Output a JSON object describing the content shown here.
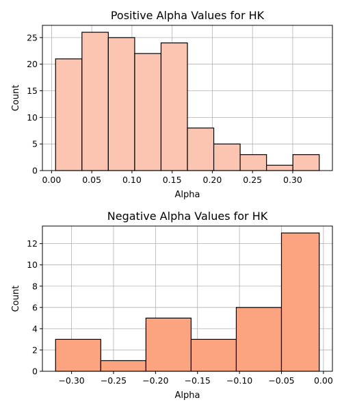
{
  "chart_data": [
    {
      "type": "bar",
      "title": "Positive Alpha Values for HK",
      "xlabel": "Alpha",
      "ylabel": "Count",
      "bin_edges": [
        0.005,
        0.0378,
        0.0706,
        0.1034,
        0.1362,
        0.169,
        0.2018,
        0.2346,
        0.2674,
        0.3002,
        0.333
      ],
      "values": [
        21,
        26,
        25,
        22,
        24,
        8,
        5,
        3,
        1,
        3
      ],
      "xlim": [
        -0.0114,
        0.3494
      ],
      "ylim": [
        0,
        27.3
      ],
      "x_ticks": [
        0.0,
        0.05,
        0.1,
        0.15,
        0.2,
        0.25,
        0.3
      ],
      "x_tick_labels": [
        "0.00",
        "0.05",
        "0.10",
        "0.15",
        "0.20",
        "0.25",
        "0.30"
      ],
      "y_ticks": [
        0,
        5,
        10,
        15,
        20,
        25
      ],
      "y_tick_labels": [
        "0",
        "5",
        "10",
        "15",
        "20",
        "25"
      ],
      "grid": true,
      "bar_color": "#fbc5b1",
      "edge_color": "#000000"
    },
    {
      "type": "bar",
      "title": "Negative Alpha Values for HK",
      "xlabel": "Alpha",
      "ylabel": "Count",
      "bin_edges": [
        -0.319,
        -0.2652,
        -0.2114,
        -0.1576,
        -0.1038,
        -0.05,
        -0.005
      ],
      "values": [
        3,
        1,
        5,
        3,
        6,
        13
      ],
      "xlim": [
        -0.3347,
        0.0107
      ],
      "ylim": [
        0,
        13.65
      ],
      "x_ticks": [
        -0.3,
        -0.25,
        -0.2,
        -0.15,
        -0.1,
        -0.05,
        0.0
      ],
      "x_tick_labels": [
        "−0.30",
        "−0.25",
        "−0.20",
        "−0.15",
        "−0.10",
        "−0.05",
        "0.00"
      ],
      "y_ticks": [
        0,
        2,
        4,
        6,
        8,
        10,
        12
      ],
      "y_tick_labels": [
        "0",
        "2",
        "4",
        "6",
        "8",
        "10",
        "12"
      ],
      "grid": true,
      "bar_color": "#fca47f",
      "edge_color": "#000000"
    }
  ]
}
